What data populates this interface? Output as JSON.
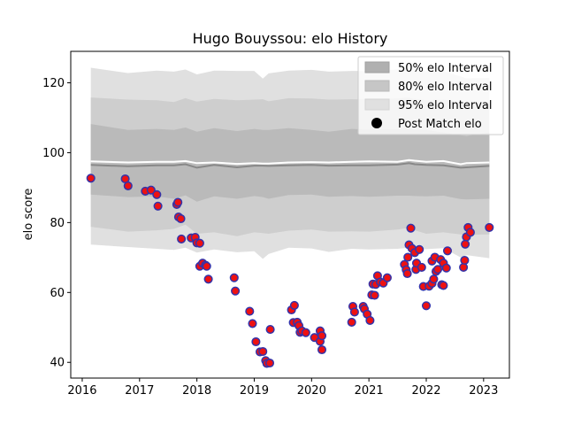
{
  "chart_data": {
    "type": "scatter",
    "title": "Hugo Bouyssou: elo History",
    "xlabel": "",
    "ylabel": "elo score",
    "xlim": [
      2015.8,
      2023.45
    ],
    "ylim": [
      35.5,
      129
    ],
    "x_ticks": [
      2016,
      2017,
      2018,
      2019,
      2020,
      2021,
      2022,
      2023
    ],
    "y_ticks": [
      40,
      60,
      80,
      100,
      120
    ],
    "grid": false,
    "legend_position": "top-right",
    "legend": [
      {
        "label": "50% elo Interval",
        "color": "#b0b0b0",
        "kind": "patch"
      },
      {
        "label": "80% elo Interval",
        "color": "#c6c6c6",
        "kind": "patch"
      },
      {
        "label": "95% elo Interval",
        "color": "#e0e0e0",
        "kind": "patch"
      },
      {
        "label": "Post Match elo",
        "color": "#000000",
        "kind": "marker"
      }
    ],
    "bands": {
      "x": [
        2016.15,
        2016.8,
        2017.3,
        2017.6,
        2017.8,
        2018.0,
        2018.3,
        2018.7,
        2019.0,
        2019.15,
        2019.25,
        2019.6,
        2020.0,
        2020.3,
        2020.7,
        2021.0,
        2021.5,
        2021.7,
        2021.8,
        2022.0,
        2022.3,
        2022.6,
        2022.7,
        2023.1
      ],
      "center": [
        96.5,
        96.1,
        96.4,
        96.4,
        96.7,
        95.7,
        96.5,
        95.8,
        96.3,
        96.3,
        96.2,
        96.4,
        96.5,
        96.3,
        96.4,
        96.4,
        96.6,
        97.0,
        96.7,
        96.5,
        96.4,
        95.7,
        95.8,
        96.2
      ],
      "mean_line": [
        97.5,
        97.2,
        97.4,
        97.4,
        97.6,
        97.0,
        97.2,
        96.8,
        97.0,
        96.9,
        96.9,
        97.2,
        97.3,
        97.2,
        97.4,
        97.5,
        97.4,
        97.9,
        97.7,
        97.4,
        97.6,
        96.7,
        97.0,
        97.2
      ],
      "p50_low": [
        88.0,
        87.3,
        87.5,
        86.8,
        87.8,
        86.0,
        87.5,
        86.8,
        87.6,
        87.3,
        86.8,
        87.9,
        88.0,
        87.4,
        87.6,
        87.4,
        87.7,
        87.7,
        87.6,
        87.5,
        87.7,
        86.7,
        86.6,
        86.8
      ],
      "p50_high": [
        108.2,
        106.5,
        106.8,
        106.5,
        107.2,
        106.0,
        107.0,
        106.2,
        106.8,
        106.5,
        106.5,
        107.0,
        106.5,
        106.0,
        106.8,
        106.6,
        106.8,
        107.0,
        106.5,
        106.5,
        105.8,
        105.0,
        104.8,
        105.8
      ],
      "p80_low": [
        78.8,
        77.4,
        77.8,
        78.2,
        79.4,
        76.8,
        77.2,
        76.1,
        77.2,
        77.0,
        76.8,
        77.7,
        78.0,
        77.4,
        77.5,
        77.4,
        78.0,
        78.5,
        77.8,
        76.8,
        77.2,
        76.6,
        76.5,
        76.6
      ],
      "p80_high": [
        115.8,
        115.2,
        115.0,
        114.5,
        115.6,
        114.6,
        115.4,
        115.0,
        115.2,
        115.3,
        114.7,
        115.6,
        115.5,
        115.2,
        115.3,
        115.2,
        115.6,
        115.8,
        115.4,
        115.0,
        115.2,
        114.4,
        114.2,
        114.6
      ],
      "p95_low": [
        73.7,
        73.0,
        72.5,
        72.2,
        72.8,
        71.4,
        72.3,
        71.5,
        71.8,
        69.6,
        71.0,
        72.8,
        72.6,
        71.6,
        72.5,
        72.3,
        72.5,
        72.8,
        72.7,
        72.4,
        72.7,
        70.0,
        70.7,
        69.8
      ],
      "p95_high": [
        124.3,
        122.8,
        123.5,
        123.2,
        123.8,
        122.4,
        123.5,
        123.4,
        123.4,
        121.2,
        122.7,
        123.5,
        123.7,
        123.2,
        123.4,
        123.4,
        123.8,
        124.5,
        123.7,
        123.4,
        123.4,
        121.8,
        121.3,
        121.4
      ]
    },
    "series": [
      {
        "marker_fill": "#ee1111",
        "marker_edge": "#3333aa",
        "points": [
          [
            2016.15,
            92.7
          ],
          [
            2016.75,
            92.5
          ],
          [
            2016.8,
            90.5
          ],
          [
            2017.1,
            89.0
          ],
          [
            2017.2,
            89.3
          ],
          [
            2017.3,
            88.0
          ],
          [
            2017.32,
            84.7
          ],
          [
            2017.65,
            85.2
          ],
          [
            2017.67,
            85.8
          ],
          [
            2017.68,
            81.6
          ],
          [
            2017.72,
            81.1
          ],
          [
            2017.73,
            75.3
          ],
          [
            2017.9,
            75.6
          ],
          [
            2017.97,
            75.8
          ],
          [
            2018.0,
            74.2
          ],
          [
            2018.05,
            74.1
          ],
          [
            2018.05,
            67.5
          ],
          [
            2018.1,
            68.4
          ],
          [
            2018.15,
            67.8
          ],
          [
            2018.17,
            67.5
          ],
          [
            2018.2,
            63.8
          ],
          [
            2018.65,
            64.2
          ],
          [
            2018.67,
            60.4
          ],
          [
            2018.92,
            54.6
          ],
          [
            2018.97,
            51.1
          ],
          [
            2019.03,
            45.9
          ],
          [
            2019.1,
            43.0
          ],
          [
            2019.15,
            43.1
          ],
          [
            2019.2,
            40.5
          ],
          [
            2019.22,
            39.7
          ],
          [
            2019.27,
            39.8
          ],
          [
            2019.28,
            49.4
          ],
          [
            2019.65,
            55.0
          ],
          [
            2019.7,
            56.3
          ],
          [
            2019.68,
            51.4
          ],
          [
            2019.75,
            51.5
          ],
          [
            2019.78,
            50.5
          ],
          [
            2019.8,
            48.6
          ],
          [
            2019.83,
            49.0
          ],
          [
            2019.9,
            48.5
          ],
          [
            2020.05,
            47.1
          ],
          [
            2020.15,
            49.0
          ],
          [
            2020.15,
            46.0
          ],
          [
            2020.18,
            47.6
          ],
          [
            2020.18,
            43.6
          ],
          [
            2020.7,
            51.5
          ],
          [
            2020.72,
            56.0
          ],
          [
            2020.75,
            54.4
          ],
          [
            2020.9,
            56.0
          ],
          [
            2020.92,
            55.3
          ],
          [
            2020.97,
            53.8
          ],
          [
            2021.02,
            52.0
          ],
          [
            2021.05,
            59.3
          ],
          [
            2021.07,
            62.4
          ],
          [
            2021.1,
            59.2
          ],
          [
            2021.12,
            62.3
          ],
          [
            2021.15,
            64.8
          ],
          [
            2021.2,
            63.0
          ],
          [
            2021.25,
            62.7
          ],
          [
            2021.32,
            64.2
          ],
          [
            2021.62,
            68.0
          ],
          [
            2021.65,
            66.5
          ],
          [
            2021.67,
            65.4
          ],
          [
            2021.68,
            70.1
          ],
          [
            2021.7,
            73.6
          ],
          [
            2021.73,
            78.4
          ],
          [
            2021.75,
            72.6
          ],
          [
            2021.8,
            71.4
          ],
          [
            2021.82,
            66.6
          ],
          [
            2021.83,
            68.4
          ],
          [
            2021.88,
            72.3
          ],
          [
            2021.92,
            67.2
          ],
          [
            2021.95,
            61.7
          ],
          [
            2022.0,
            56.2
          ],
          [
            2022.05,
            61.8
          ],
          [
            2022.1,
            62.6
          ],
          [
            2022.1,
            69.0
          ],
          [
            2022.13,
            63.8
          ],
          [
            2022.15,
            70.1
          ],
          [
            2022.17,
            66.0
          ],
          [
            2022.2,
            66.6
          ],
          [
            2022.25,
            69.4
          ],
          [
            2022.27,
            62.2
          ],
          [
            2022.3,
            62.0
          ],
          [
            2022.3,
            68.4
          ],
          [
            2022.35,
            67.0
          ],
          [
            2022.37,
            71.9
          ],
          [
            2022.65,
            67.2
          ],
          [
            2022.67,
            69.2
          ],
          [
            2022.68,
            73.8
          ],
          [
            2022.7,
            75.9
          ],
          [
            2022.73,
            78.6
          ],
          [
            2022.77,
            77.2
          ],
          [
            2023.1,
            78.6
          ]
        ]
      }
    ]
  }
}
